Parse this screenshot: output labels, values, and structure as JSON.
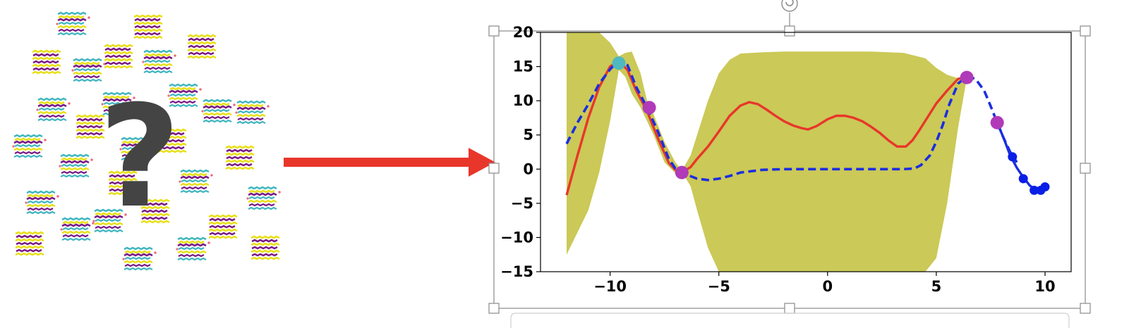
{
  "colors": {
    "arrow": "#e8362b",
    "uncertainty_band": "#cbc957",
    "mean_line": "#e8362b",
    "truth_line": "#1a2ee0",
    "initial_point": "#4fb8c0",
    "sample_points": "#b03ab8",
    "recent_points": "#0a1fe6",
    "question_mark": "#444444",
    "selection_handles": "#888888"
  },
  "left_panel": {
    "description_icon": "molecular-crystal-structures-cloud",
    "question_mark": "?"
  },
  "chart_data": {
    "type": "line",
    "title": "",
    "xlabel": "",
    "ylabel": "",
    "xlim": [
      -13.2,
      11.2
    ],
    "ylim": [
      -15,
      20
    ],
    "xticks": [
      -10,
      -5,
      0,
      5,
      10
    ],
    "yticks": [
      -15,
      -10,
      -5,
      0,
      5,
      10,
      15,
      20
    ],
    "xtick_labels": [
      "−10",
      "−5",
      "0",
      "5",
      "10"
    ],
    "ytick_labels": [
      "−15",
      "−10",
      "−5",
      "0",
      "5",
      "10",
      "15",
      "20"
    ],
    "grid": false,
    "series": [
      {
        "kind": "band",
        "x": [
          -12,
          -11,
          -10.5,
          -10,
          -9.6,
          -9.3,
          -9,
          -8.6,
          -8.3,
          -8,
          -7.5,
          -7,
          -6.7,
          -6.3,
          -6,
          -5.5,
          -5,
          -4.5,
          -4,
          -3,
          -2,
          0,
          2,
          3.5,
          4.5,
          5,
          5.5,
          6,
          6.4,
          6.8,
          7,
          7.5
        ],
        "upper": [
          20,
          20,
          20,
          18.5,
          16.5,
          17,
          17.2,
          14,
          10,
          8,
          4,
          1,
          -0.2,
          2,
          5,
          10,
          14,
          16,
          16.9,
          17.1,
          17.2,
          17.2,
          17.2,
          17,
          16.2,
          14.8,
          13.8,
          13.3,
          13.5,
          13.9,
          14.0,
          14.0
        ],
        "lower": [
          -12.5,
          -6,
          -0.5,
          7,
          14.5,
          13.5,
          11,
          9,
          7,
          5,
          1,
          -0.6,
          -0.4,
          -2.5,
          -6,
          -11.5,
          -15,
          -15,
          -15,
          -15,
          -15,
          -15,
          -15,
          -15,
          -15,
          -13,
          -5,
          6,
          13.3,
          13.9,
          14.0,
          14.0
        ],
        "clip_x": [
          -12,
          7.3
        ]
      },
      {
        "kind": "line",
        "style": "solid",
        "x": [
          -12,
          -11.5,
          -11,
          -10.5,
          -10,
          -9.6,
          -9.2,
          -8.8,
          -8.3,
          -7.8,
          -7.3,
          -7,
          -6.7,
          -6.3,
          -6,
          -5.5,
          -5,
          -4.5,
          -4,
          -3.6,
          -3.2,
          -2.8,
          -2.4,
          -2,
          -1.6,
          -1.2,
          -0.9,
          -0.5,
          0,
          0.4,
          0.8,
          1.2,
          1.6,
          2,
          2.4,
          2.8,
          3.2,
          3.6,
          3.9,
          4.2,
          4.6,
          5,
          5.5,
          6,
          6.4
        ],
        "y": [
          -3.8,
          2,
          7.5,
          12,
          15,
          15.8,
          14.5,
          11.5,
          8.5,
          4.5,
          0.9,
          -0.1,
          -0.5,
          0.3,
          1.5,
          3.3,
          5.5,
          7.8,
          9.3,
          9.8,
          9.5,
          8.7,
          7.8,
          7.0,
          6.4,
          6.0,
          5.8,
          6.3,
          7.3,
          7.8,
          7.8,
          7.5,
          7.0,
          6.2,
          5.3,
          4.2,
          3.3,
          3.3,
          4.2,
          5.6,
          7.6,
          9.6,
          11.5,
          13.2,
          13.5
        ]
      },
      {
        "kind": "line",
        "style": "dashed",
        "x": [
          -12,
          -11.5,
          -11,
          -10.5,
          -10,
          -9.6,
          -9.2,
          -8.8,
          -8.3,
          -7.8,
          -7.3,
          -7,
          -6.7,
          -6.4,
          -6,
          -5.5,
          -5,
          -4.5,
          -4,
          -3,
          -2,
          -1,
          0,
          1,
          2,
          3,
          3.5,
          4,
          4.3,
          4.7,
          5,
          5.3,
          5.6,
          6,
          6.4,
          6.8,
          7.2,
          7.5,
          7.8,
          8.1,
          8.4,
          8.7
        ],
        "y": [
          3.7,
          6.8,
          9.5,
          12.5,
          14.6,
          15.9,
          15.2,
          12,
          9,
          5.5,
          1.5,
          0.1,
          -0.6,
          -0.9,
          -1.4,
          -1.6,
          -1.4,
          -1,
          -0.5,
          -0.1,
          0,
          0,
          0,
          0,
          0,
          0,
          0,
          0.1,
          0.6,
          2,
          4,
          6.5,
          9.5,
          12.5,
          13.6,
          13.2,
          11.5,
          9.2,
          6.8,
          4.5,
          2.5,
          1.0
        ]
      },
      {
        "kind": "line",
        "style": "solid-blue",
        "x": [
          7.8,
          8.1,
          8.4,
          8.7,
          9.0,
          9.3,
          9.6,
          9.9,
          10.0
        ],
        "y": [
          6.8,
          4.5,
          2.0,
          0.2,
          -1.2,
          -2.4,
          -3.1,
          -2.7,
          -2.6
        ]
      }
    ],
    "points": [
      {
        "group": "initial",
        "x": -9.6,
        "y": 15.5
      },
      {
        "group": "sampled",
        "x": -8.2,
        "y": 9.0
      },
      {
        "group": "sampled",
        "x": -6.7,
        "y": -0.5
      },
      {
        "group": "sampled",
        "x": 6.4,
        "y": 13.4
      },
      {
        "group": "sampled",
        "x": 7.8,
        "y": 6.8
      },
      {
        "group": "recent",
        "x": 8.5,
        "y": 1.8
      },
      {
        "group": "recent",
        "x": 9.0,
        "y": -1.4
      },
      {
        "group": "recent",
        "x": 9.5,
        "y": -3.1
      },
      {
        "group": "recent",
        "x": 9.8,
        "y": -3.1
      },
      {
        "group": "recent",
        "x": 10.0,
        "y": -2.6
      }
    ]
  }
}
